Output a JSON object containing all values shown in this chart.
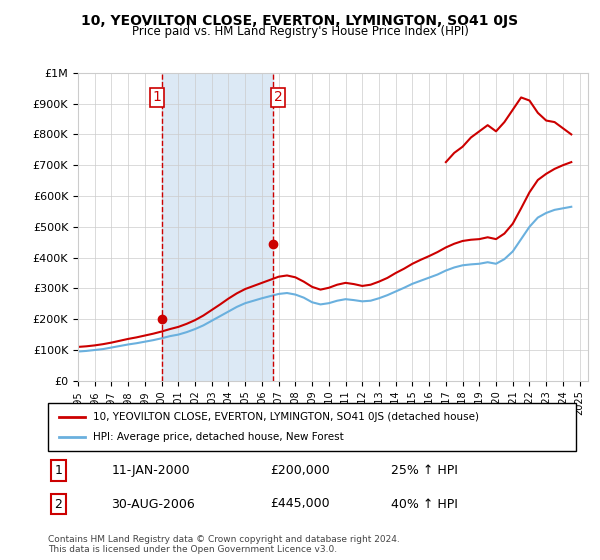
{
  "title": "10, YEOVILTON CLOSE, EVERTON, LYMINGTON, SO41 0JS",
  "subtitle": "Price paid vs. HM Land Registry's House Price Index (HPI)",
  "ylabel_ticks": [
    "£0",
    "£100K",
    "£200K",
    "£300K",
    "£400K",
    "£500K",
    "£600K",
    "£700K",
    "£800K",
    "£900K",
    "£1M"
  ],
  "ytick_values": [
    0,
    100000,
    200000,
    300000,
    400000,
    500000,
    600000,
    700000,
    800000,
    900000,
    1000000
  ],
  "xlim_start": 1995.0,
  "xlim_end": 2025.5,
  "ylim_min": 0,
  "ylim_max": 1000000,
  "hpi_color": "#6ab0de",
  "price_color": "#cc0000",
  "transaction_dot_color": "#cc0000",
  "vline_color": "#cc0000",
  "vline_style": "--",
  "bg_color": "#dce9f5",
  "plot_bg": "#ffffff",
  "legend_line1": "10, YEOVILTON CLOSE, EVERTON, LYMINGTON, SO41 0JS (detached house)",
  "legend_line2": "HPI: Average price, detached house, New Forest",
  "table_rows": [
    {
      "num": "1",
      "date": "11-JAN-2000",
      "price": "£200,000",
      "hpi": "25% ↑ HPI"
    },
    {
      "num": "2",
      "date": "30-AUG-2006",
      "price": "£445,000",
      "hpi": "40% ↑ HPI"
    }
  ],
  "footnote": "Contains HM Land Registry data © Crown copyright and database right 2024.\nThis data is licensed under the Open Government Licence v3.0.",
  "transaction_years": [
    2000.03,
    2006.66
  ],
  "transaction_prices": [
    200000,
    445000
  ],
  "vline_years": [
    2000.03,
    2006.66
  ],
  "hpi_x": [
    1995,
    1995.5,
    1996,
    1996.5,
    1997,
    1997.5,
    1998,
    1998.5,
    1999,
    1999.5,
    2000,
    2000.5,
    2001,
    2001.5,
    2002,
    2002.5,
    2003,
    2003.5,
    2004,
    2004.5,
    2005,
    2005.5,
    2006,
    2006.5,
    2007,
    2007.5,
    2008,
    2008.5,
    2009,
    2009.5,
    2010,
    2010.5,
    2011,
    2011.5,
    2012,
    2012.5,
    2013,
    2013.5,
    2014,
    2014.5,
    2015,
    2015.5,
    2016,
    2016.5,
    2017,
    2017.5,
    2018,
    2018.5,
    2019,
    2019.5,
    2020,
    2020.5,
    2021,
    2021.5,
    2022,
    2022.5,
    2023,
    2023.5,
    2024,
    2024.5
  ],
  "hpi_y": [
    95000,
    97000,
    100000,
    103000,
    108000,
    113000,
    118000,
    122000,
    127000,
    132000,
    138000,
    145000,
    150000,
    158000,
    168000,
    180000,
    195000,
    210000,
    225000,
    240000,
    252000,
    260000,
    268000,
    275000,
    282000,
    285000,
    280000,
    270000,
    255000,
    248000,
    252000,
    260000,
    265000,
    262000,
    258000,
    260000,
    268000,
    278000,
    290000,
    302000,
    315000,
    325000,
    335000,
    345000,
    358000,
    368000,
    375000,
    378000,
    380000,
    385000,
    380000,
    395000,
    420000,
    460000,
    500000,
    530000,
    545000,
    555000,
    560000,
    565000
  ],
  "price_x": [
    1995,
    1995.5,
    1996,
    1996.5,
    1997,
    1997.5,
    1998,
    1998.5,
    1999,
    1999.5,
    2000,
    2000.5,
    2001,
    2001.5,
    2002,
    2002.5,
    2003,
    2003.5,
    2004,
    2004.5,
    2005,
    2005.5,
    2006,
    2006.5,
    2007,
    2007.5,
    2008,
    2008.5,
    2009,
    2009.5,
    2010,
    2010.5,
    2011,
    2011.5,
    2012,
    2012.5,
    2013,
    2013.5,
    2014,
    2014.5,
    2015,
    2015.5,
    2016,
    2016.5,
    2017,
    2017.5,
    2018,
    2018.5,
    2019,
    2019.5,
    2020,
    2020.5,
    2021,
    2021.5,
    2022,
    2022.5,
    2023,
    2023.5,
    2024,
    2024.5
  ],
  "price_y": [
    110000,
    112000,
    115000,
    119000,
    124000,
    130000,
    136000,
    141000,
    147000,
    153000,
    160000,
    168000,
    175000,
    185000,
    197000,
    212000,
    230000,
    248000,
    267000,
    284000,
    298000,
    308000,
    318000,
    328000,
    338000,
    342000,
    336000,
    322000,
    305000,
    296000,
    302000,
    312000,
    318000,
    314000,
    308000,
    312000,
    322000,
    334000,
    350000,
    364000,
    380000,
    393000,
    405000,
    418000,
    433000,
    445000,
    454000,
    458000,
    460000,
    466000,
    460000,
    478000,
    510000,
    560000,
    612000,
    652000,
    672000,
    688000,
    700000,
    710000
  ],
  "price_x_late": [
    2017,
    2017.5,
    2018,
    2018.5,
    2019,
    2019.5,
    2020,
    2020.5,
    2021,
    2021.5,
    2022,
    2022.5,
    2023,
    2023.5,
    2024,
    2024.5
  ],
  "price_y_late": [
    710000,
    740000,
    760000,
    790000,
    810000,
    830000,
    810000,
    840000,
    880000,
    920000,
    910000,
    870000,
    845000,
    840000,
    820000,
    800000
  ]
}
